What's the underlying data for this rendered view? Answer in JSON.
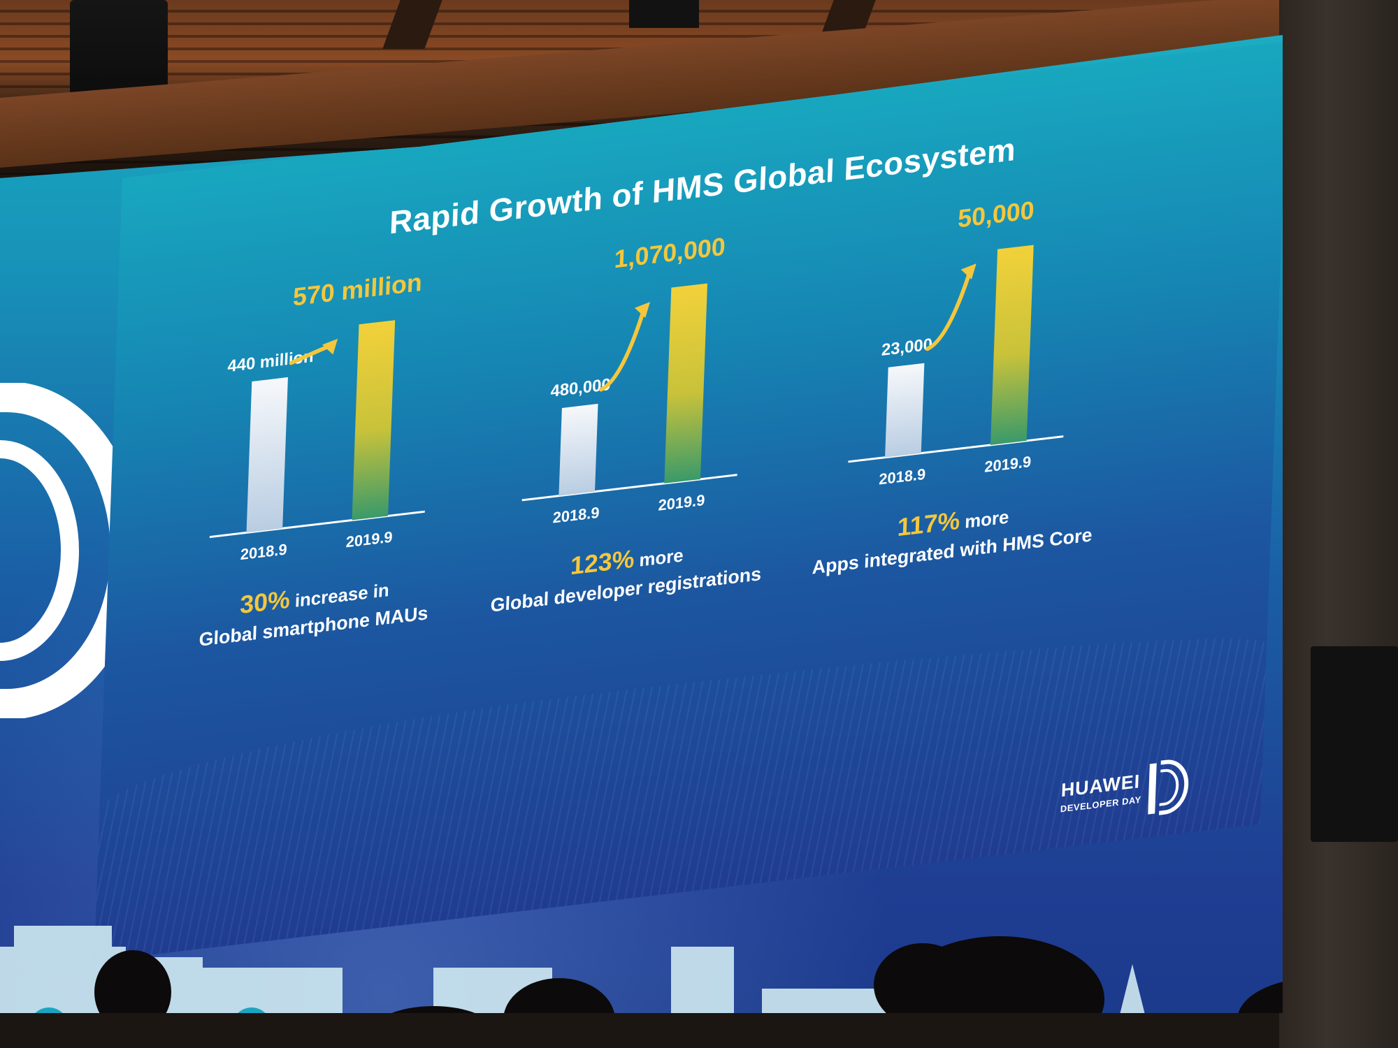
{
  "slide": {
    "title": "Rapid Growth of HMS Global Ecosystem"
  },
  "brand": {
    "name": "HUAWEI",
    "subtitle": "DEVELOPER DAY"
  },
  "colors": {
    "bar_2018": "#e4ecf5",
    "bar_2019_top": "#f2d13a",
    "bar_2019_bottom": "#3a9a6a",
    "highlight_text": "#f4c73c",
    "text": "#ffffff"
  },
  "chart_data": [
    {
      "type": "bar",
      "categories": [
        "2018.9",
        "2019.9"
      ],
      "values": [
        440,
        570
      ],
      "value_labels": [
        "440 million",
        "570 million"
      ],
      "units": "million",
      "caption_highlight": "30%",
      "caption_rest": " increase in",
      "caption_line2": "Global smartphone MAUs"
    },
    {
      "type": "bar",
      "categories": [
        "2018.9",
        "2019.9"
      ],
      "values": [
        480000,
        1070000
      ],
      "value_labels": [
        "480,000",
        "1,070,000"
      ],
      "caption_highlight": "123%",
      "caption_rest": " more",
      "caption_line2": "Global developer registrations"
    },
    {
      "type": "bar",
      "categories": [
        "2018.9",
        "2019.9"
      ],
      "values": [
        23000,
        50000
      ],
      "value_labels": [
        "23,000",
        "50,000"
      ],
      "caption_highlight": "117%",
      "caption_rest": " more",
      "caption_line2": "Apps integrated with HMS Core"
    }
  ]
}
